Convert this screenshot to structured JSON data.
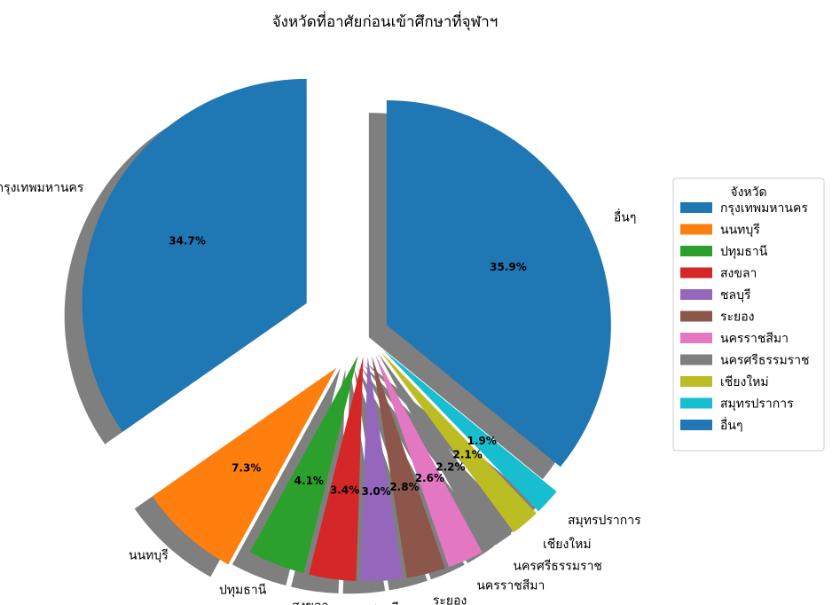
{
  "chart_data": {
    "type": "pie",
    "title": "จังหวัดที่อาศัยก่อนเข้าศึกษาที่จุฬาฯ",
    "categories": [
      "กรุงเทพมหานคร",
      "นนทบุรี",
      "ปทุมธานี",
      "สงขลา",
      "ชลบุรี",
      "ระยอง",
      "นครราชสีมา",
      "นครศรีธรรมราช",
      "เชียงใหม่",
      "สมุทรปราการ",
      "อื่นๆ"
    ],
    "values": [
      34.7,
      7.3,
      4.1,
      3.4,
      3.0,
      2.8,
      2.6,
      2.2,
      2.1,
      1.9,
      35.9
    ],
    "value_labels": [
      "34.7%",
      "7.3%",
      "4.1%",
      "3.4%",
      "3.0%",
      "2.8%",
      "2.6%",
      "2.2%",
      "2.1%",
      "1.9%",
      "35.9%"
    ],
    "explode": [
      0.3,
      0.2,
      0.1,
      0.1,
      0.1,
      0.1,
      0.1,
      0.1,
      0.1,
      0.1,
      0.1
    ],
    "colors": [
      "#1f77b4",
      "#ff7f0e",
      "#2ca02c",
      "#d62728",
      "#9467bd",
      "#8c564b",
      "#e377c2",
      "#7f7f7f",
      "#bcbd22",
      "#17becf",
      "#1f77b4"
    ],
    "shadow": true,
    "start_angle": 90,
    "legend": {
      "title": "จังหวัด",
      "placement": "right"
    }
  }
}
